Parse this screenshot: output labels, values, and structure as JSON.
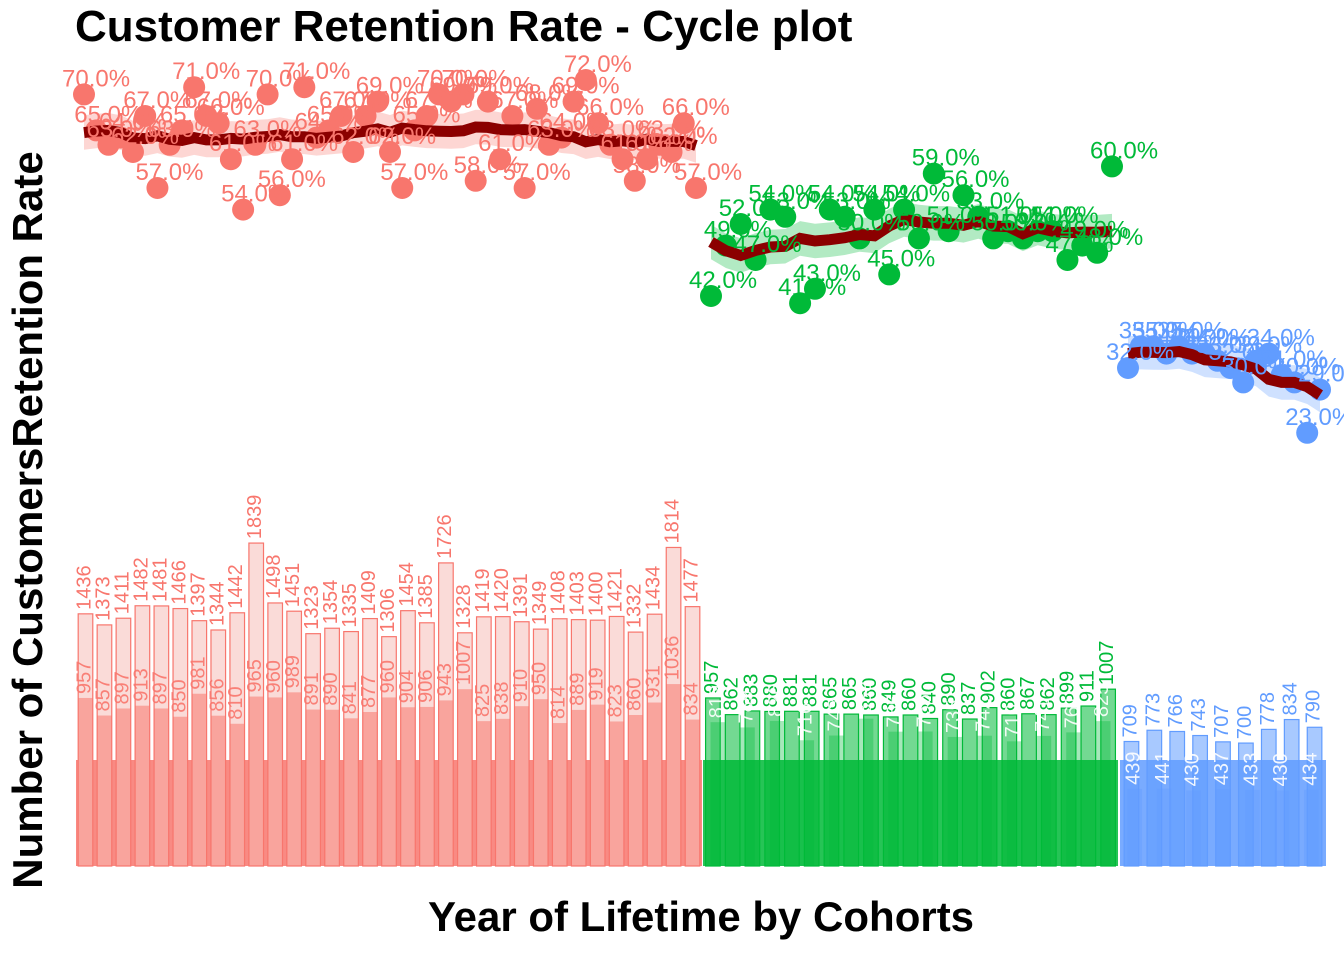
{
  "chart_data": {
    "type": "cycle plot (points + smoothed trend + bars)",
    "title": "Customer Retention Rate - Cycle plot",
    "xlabel": "Year of Lifetime by Cohorts",
    "ylabel": "Number of CustomersRetention Rate",
    "grid": false,
    "legend": "none",
    "trend_color": "#8B0000",
    "groups": [
      {
        "color": "#F8766D",
        "bar_fill": "#FADBD8",
        "retention": [
          70,
          65,
          63,
          64,
          62,
          67,
          57,
          63,
          65,
          71,
          67,
          66,
          61,
          54,
          63,
          70,
          56,
          61,
          71,
          64,
          65,
          67,
          62,
          67,
          69,
          62,
          57,
          65,
          67,
          70,
          69,
          70,
          58,
          69,
          61,
          67,
          57,
          68,
          63,
          64,
          69,
          72,
          66,
          63,
          61,
          58,
          61,
          63,
          62,
          66,
          57
        ],
        "customers_total": [
          1436,
          1373,
          1411,
          1482,
          1481,
          1466,
          1397,
          1344,
          1442,
          1839,
          1498,
          1451,
          1323,
          1354,
          1335,
          1409,
          1306,
          1454,
          1385,
          1726,
          1328,
          1419,
          1420,
          1391,
          1349,
          1408,
          1403,
          1400,
          1421,
          1332,
          1434,
          1814,
          1477
        ],
        "customers_retained": [
          957,
          857,
          897,
          913,
          897,
          850,
          981,
          856,
          810,
          965,
          960,
          989,
          891,
          890,
          841,
          877,
          960,
          904,
          906,
          943,
          1007,
          825,
          838,
          910,
          950,
          814,
          889,
          919,
          823,
          860,
          931,
          1036,
          834
        ]
      },
      {
        "color": "#00BA38",
        "bar_fill": "#00BA38",
        "retention": [
          42,
          49,
          52,
          47,
          54,
          53,
          41,
          43,
          54,
          53,
          50,
          54,
          45,
          54,
          50,
          59,
          51,
          56,
          53,
          50,
          51,
          50,
          51,
          51,
          47,
          49,
          48,
          60
        ],
        "customers_total": [
          957,
          862,
          883,
          880,
          881,
          881,
          865,
          865,
          860,
          849,
          860,
          840,
          890,
          837,
          902,
          860,
          867,
          862,
          899,
          911,
          1007
        ],
        "customers_retained": [
          819,
          789,
          826,
          716,
          743,
          839,
          765,
          766,
          735,
          742,
          710,
          741,
          761,
          825
        ]
      },
      {
        "color": "#619CFF",
        "bar_fill": "#619CFF",
        "retention": [
          32,
          35,
          35,
          34,
          35,
          34,
          34,
          33,
          32,
          30,
          33,
          34,
          31,
          30,
          23,
          29
        ],
        "customers_total": [
          709,
          773,
          766,
          743,
          707,
          700,
          778,
          834,
          790
        ],
        "customers_retained": [
          439,
          441,
          430,
          437,
          433,
          430,
          434
        ]
      }
    ]
  }
}
